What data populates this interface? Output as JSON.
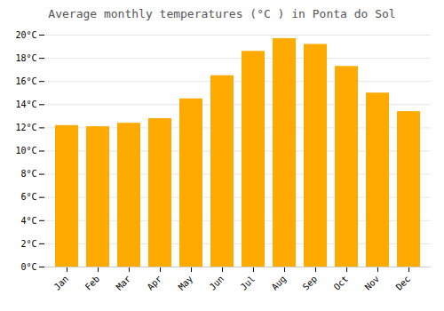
{
  "chart_data": {
    "type": "bar",
    "title": "Average monthly temperatures (°C ) in Ponta do Sol",
    "categories": [
      "Jan",
      "Feb",
      "Mar",
      "Apr",
      "May",
      "Jun",
      "Jul",
      "Aug",
      "Sep",
      "Oct",
      "Nov",
      "Dec"
    ],
    "values": [
      12.2,
      12.1,
      12.4,
      12.8,
      14.5,
      16.5,
      18.6,
      19.7,
      19.2,
      17.3,
      15.0,
      13.4
    ],
    "color": "#FFAA00",
    "ylim": [
      0,
      20
    ],
    "yticks": [
      {
        "value": 0,
        "label": "0°C"
      },
      {
        "value": 2,
        "label": "2°C"
      },
      {
        "value": 4,
        "label": "4°C"
      },
      {
        "value": 6,
        "label": "6°C"
      },
      {
        "value": 8,
        "label": "8°C"
      },
      {
        "value": 10,
        "label": "10°C"
      },
      {
        "value": 12,
        "label": "12°C"
      },
      {
        "value": 14,
        "label": "14°C"
      },
      {
        "value": 16,
        "label": "16°C"
      },
      {
        "value": 18,
        "label": "18°C"
      },
      {
        "value": 20,
        "label": "20°C"
      }
    ],
    "grid": true
  }
}
